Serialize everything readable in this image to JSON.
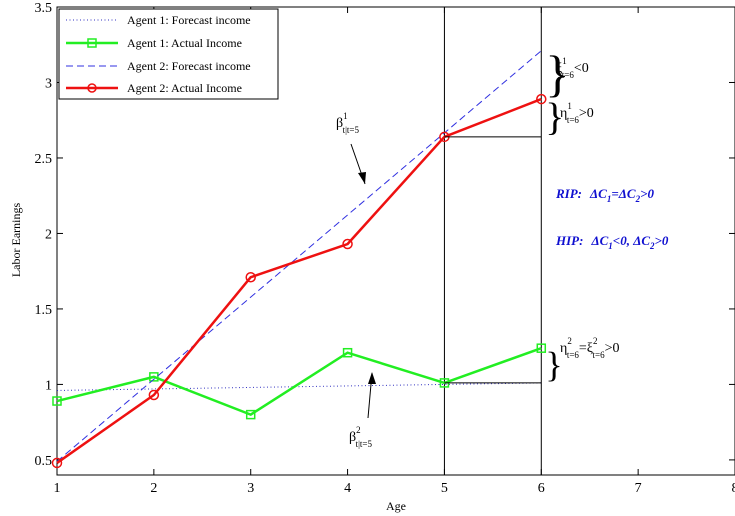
{
  "chart_data": {
    "type": "line",
    "xlabel": "Age",
    "ylabel": "Labor Earnings",
    "xlim": [
      1,
      8
    ],
    "ylim": [
      0.4,
      3.5
    ],
    "xticks": [
      1,
      2,
      3,
      4,
      5,
      6,
      7,
      8
    ],
    "yticks": [
      0.5,
      1,
      1.5,
      2,
      2.5,
      3,
      3.5
    ],
    "xtick_labels": [
      "1",
      "2",
      "3",
      "4",
      "5",
      "6",
      "7",
      "8"
    ],
    "ytick_labels": [
      "0.5",
      "1",
      "1.5",
      "2",
      "2.5",
      "3",
      "3.5"
    ],
    "grid": false,
    "legend_position": "top-left",
    "vertical_lines_at_x": [
      5,
      6
    ],
    "series": [
      {
        "name": "Agent 1: Forecast income",
        "color": "#3030c0",
        "style": "dotted",
        "marker": "none",
        "x": [
          1,
          6
        ],
        "y": [
          0.96,
          1.01
        ]
      },
      {
        "name": "Agent 1: Actual Income",
        "color": "#22ee22",
        "style": "solid",
        "marker": "square",
        "x": [
          1,
          2,
          3,
          4,
          5,
          6
        ],
        "y": [
          0.89,
          1.05,
          0.8,
          1.21,
          1.01,
          1.24
        ]
      },
      {
        "name": "Agent 2: Forecast income",
        "color": "#3030e0",
        "style": "dashed",
        "marker": "none",
        "x": [
          1,
          6
        ],
        "y": [
          0.49,
          3.21
        ]
      },
      {
        "name": "Agent 2: Actual Income",
        "color": "#ee1111",
        "style": "solid",
        "marker": "circle",
        "x": [
          1,
          2,
          3,
          4,
          5,
          6
        ],
        "y": [
          0.48,
          0.93,
          1.71,
          1.93,
          2.64,
          2.89
        ]
      }
    ],
    "annotations": [
      {
        "id": "beta1",
        "sym": "β",
        "sup": "1",
        "sub": "t|t=5"
      },
      {
        "id": "beta2",
        "sym": "β",
        "sup": "2",
        "sub": "t|t=5"
      },
      {
        "id": "xi1",
        "sym": "ξ",
        "sup": "1",
        "sub": "t=6",
        "tail": "<0"
      },
      {
        "id": "eta1",
        "sym": "η",
        "sup": "1",
        "sub": "t=6",
        "tail": ">0"
      },
      {
        "id": "eta2",
        "sym": "η",
        "sup": "2",
        "sub": "t=6",
        "mid": "=ξ",
        "sup2": "2",
        "sub2": "t=6",
        "tail": ">0"
      }
    ],
    "hypotheses": [
      {
        "label": "RIP:",
        "text1": "ΔC",
        "s1": "1",
        "mid": "=ΔC",
        "s2": "2",
        "tail": ">0"
      },
      {
        "label": "HIP:",
        "text1": "ΔC",
        "s1": "1",
        "mid": "<0, ΔC",
        "s2": "2",
        "tail": ">0"
      }
    ]
  }
}
